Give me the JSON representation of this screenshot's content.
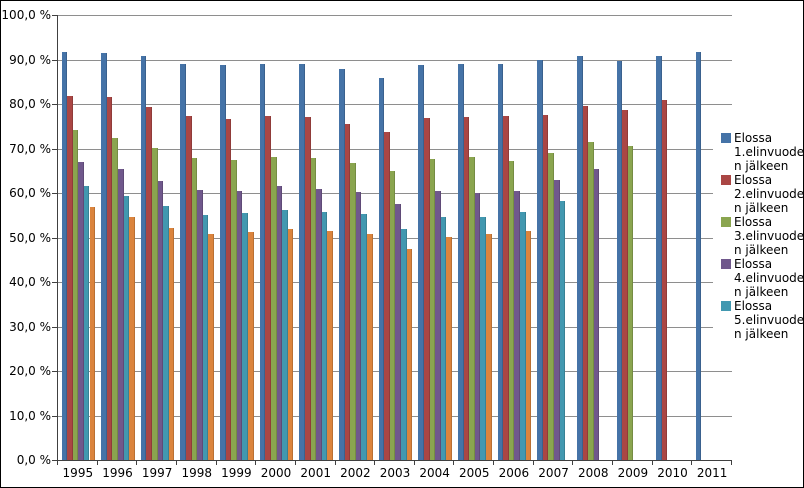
{
  "chart": {
    "background": "#FFFFFF",
    "border_color": "#000000",
    "gridline_color": "#8E8E8E",
    "axis_line_color": "#404040",
    "text_color": "#000000"
  },
  "legend": {
    "position": "right",
    "items": [
      {
        "color": "#4573A7",
        "label": "Elossa 1.elinvuoden jälkeen",
        "lines": [
          "Elossa",
          "1.elinvuode",
          "n jälkeen"
        ]
      },
      {
        "color": "#AA4644",
        "label": "Elossa 2.elinvuoden jälkeen",
        "lines": [
          "Elossa",
          "2.elinvuode",
          "n jälkeen"
        ]
      },
      {
        "color": "#8AA54F",
        "label": "Elossa 3.elinvuoden jälkeen",
        "lines": [
          "Elossa",
          "3.elinvuode",
          "n jälkeen"
        ]
      },
      {
        "color": "#70588C",
        "label": "Elossa 4.elinvuoden jälkeen",
        "lines": [
          "Elossa",
          "4.elinvuode",
          "n jälkeen"
        ]
      },
      {
        "color": "#4298B0",
        "label": "Elossa 5.elinvuoden jälkeen",
        "lines": [
          "Elossa",
          "5.elinvuode",
          "n jälkeen"
        ]
      }
    ]
  },
  "chart_data": {
    "type": "bar",
    "title": "",
    "xlabel": "",
    "ylabel": "",
    "ylim": [
      0,
      100
    ],
    "grid": "horizontal",
    "legend_position": "right",
    "y_tick_labels": [
      "0,0 %",
      "10,0 %",
      "20,0 %",
      "30,0 %",
      "40,0 %",
      "50,0 %",
      "60,0 %",
      "70,0 %",
      "80,0 %",
      "90,0 %",
      "100,0 %"
    ],
    "categories": [
      "1995",
      "1996",
      "1997",
      "1998",
      "1999",
      "2000",
      "2001",
      "2002",
      "2003",
      "2004",
      "2005",
      "2006",
      "2007",
      "2008",
      "2009",
      "2010",
      "2011"
    ],
    "series": [
      {
        "name": "Elossa 1.elinvuoden jälkeen",
        "color": "#4573A7",
        "legend_shown": true,
        "values": [
          91.6,
          91.5,
          90.7,
          89.0,
          88.7,
          89.1,
          89.0,
          87.9,
          85.9,
          88.8,
          89.1,
          89.1,
          89.9,
          90.7,
          89.6,
          90.7,
          91.7
        ]
      },
      {
        "name": "Elossa 2.elinvuoden jälkeen",
        "color": "#AA4644",
        "legend_shown": true,
        "values": [
          81.8,
          81.5,
          79.4,
          77.2,
          76.7,
          77.2,
          77.0,
          75.4,
          73.8,
          76.8,
          77.1,
          77.3,
          77.6,
          79.5,
          78.6,
          81.0,
          null
        ]
      },
      {
        "name": "Elossa 3.elinvuoden jälkeen",
        "color": "#8AA54F",
        "legend_shown": true,
        "values": [
          74.1,
          72.4,
          70.1,
          67.8,
          67.4,
          68.1,
          67.8,
          66.8,
          64.9,
          67.7,
          68.1,
          67.3,
          69.0,
          71.5,
          70.6,
          null,
          null
        ]
      },
      {
        "name": "Elossa 4.elinvuoden jälkeen",
        "color": "#70588C",
        "legend_shown": true,
        "values": [
          67.0,
          65.3,
          62.8,
          60.6,
          60.5,
          61.5,
          61.0,
          60.3,
          57.6,
          60.5,
          59.9,
          60.5,
          62.9,
          65.4,
          null,
          null,
          null
        ]
      },
      {
        "name": "Elossa 5.elinvuoden jälkeen",
        "color": "#4298B0",
        "legend_shown": true,
        "values": [
          61.6,
          59.4,
          57.0,
          55.1,
          55.4,
          56.1,
          55.7,
          55.2,
          52.0,
          54.6,
          54.5,
          55.7,
          58.1,
          null,
          null,
          null,
          null
        ]
      },
      {
        "name": "",
        "color": "#DB843D",
        "legend_shown": false,
        "values": [
          56.8,
          54.7,
          52.1,
          50.7,
          51.2,
          52.0,
          51.5,
          50.8,
          47.5,
          50.1,
          50.8,
          51.4,
          null,
          null,
          null,
          null,
          null
        ]
      }
    ]
  }
}
